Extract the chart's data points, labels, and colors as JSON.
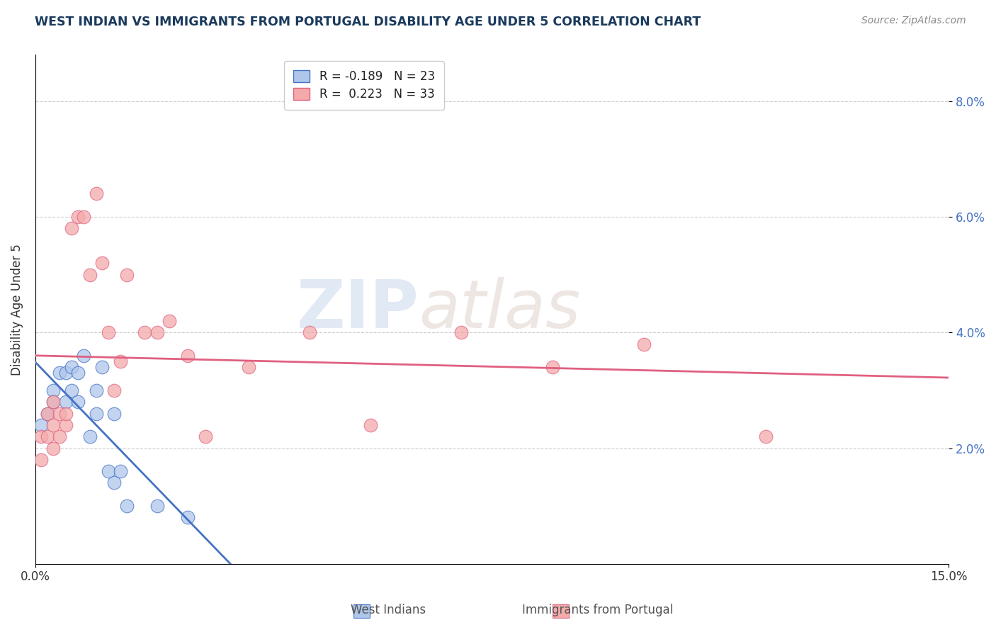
{
  "title": "WEST INDIAN VS IMMIGRANTS FROM PORTUGAL DISABILITY AGE UNDER 5 CORRELATION CHART",
  "source_text": "Source: ZipAtlas.com",
  "ylabel": "Disability Age Under 5",
  "xlim": [
    0.0,
    0.15
  ],
  "ylim": [
    0.0,
    0.088
  ],
  "ytick_values": [
    0.02,
    0.04,
    0.06,
    0.08
  ],
  "xtick_values": [
    0.0,
    0.15
  ],
  "legend_label1": "West Indians",
  "legend_label2": "Immigrants from Portugal",
  "R1": -0.189,
  "N1": 23,
  "R2": 0.223,
  "N2": 33,
  "color_blue": "#AEC6EA",
  "color_pink": "#F4AAAA",
  "color_line_blue": "#4472C4",
  "color_line_pink": "#E06080",
  "color_tick": "#4472C4",
  "watermark_zip": "ZIP",
  "watermark_atlas": "atlas",
  "west_indians_x": [
    0.001,
    0.002,
    0.003,
    0.003,
    0.004,
    0.005,
    0.005,
    0.006,
    0.006,
    0.007,
    0.007,
    0.008,
    0.009,
    0.01,
    0.01,
    0.011,
    0.012,
    0.013,
    0.013,
    0.014,
    0.015,
    0.02,
    0.025
  ],
  "west_indians_y": [
    0.024,
    0.026,
    0.03,
    0.028,
    0.033,
    0.033,
    0.028,
    0.034,
    0.03,
    0.033,
    0.028,
    0.036,
    0.022,
    0.03,
    0.026,
    0.034,
    0.016,
    0.014,
    0.026,
    0.016,
    0.01,
    0.01,
    0.008
  ],
  "portugal_x": [
    0.001,
    0.001,
    0.002,
    0.002,
    0.003,
    0.003,
    0.003,
    0.004,
    0.004,
    0.005,
    0.005,
    0.006,
    0.007,
    0.008,
    0.009,
    0.01,
    0.011,
    0.012,
    0.013,
    0.014,
    0.015,
    0.018,
    0.02,
    0.022,
    0.025,
    0.028,
    0.035,
    0.045,
    0.055,
    0.07,
    0.085,
    0.1,
    0.12
  ],
  "portugal_y": [
    0.022,
    0.018,
    0.022,
    0.026,
    0.024,
    0.02,
    0.028,
    0.022,
    0.026,
    0.024,
    0.026,
    0.058,
    0.06,
    0.06,
    0.05,
    0.064,
    0.052,
    0.04,
    0.03,
    0.035,
    0.05,
    0.04,
    0.04,
    0.042,
    0.036,
    0.022,
    0.034,
    0.04,
    0.024,
    0.04,
    0.034,
    0.038,
    0.022
  ]
}
